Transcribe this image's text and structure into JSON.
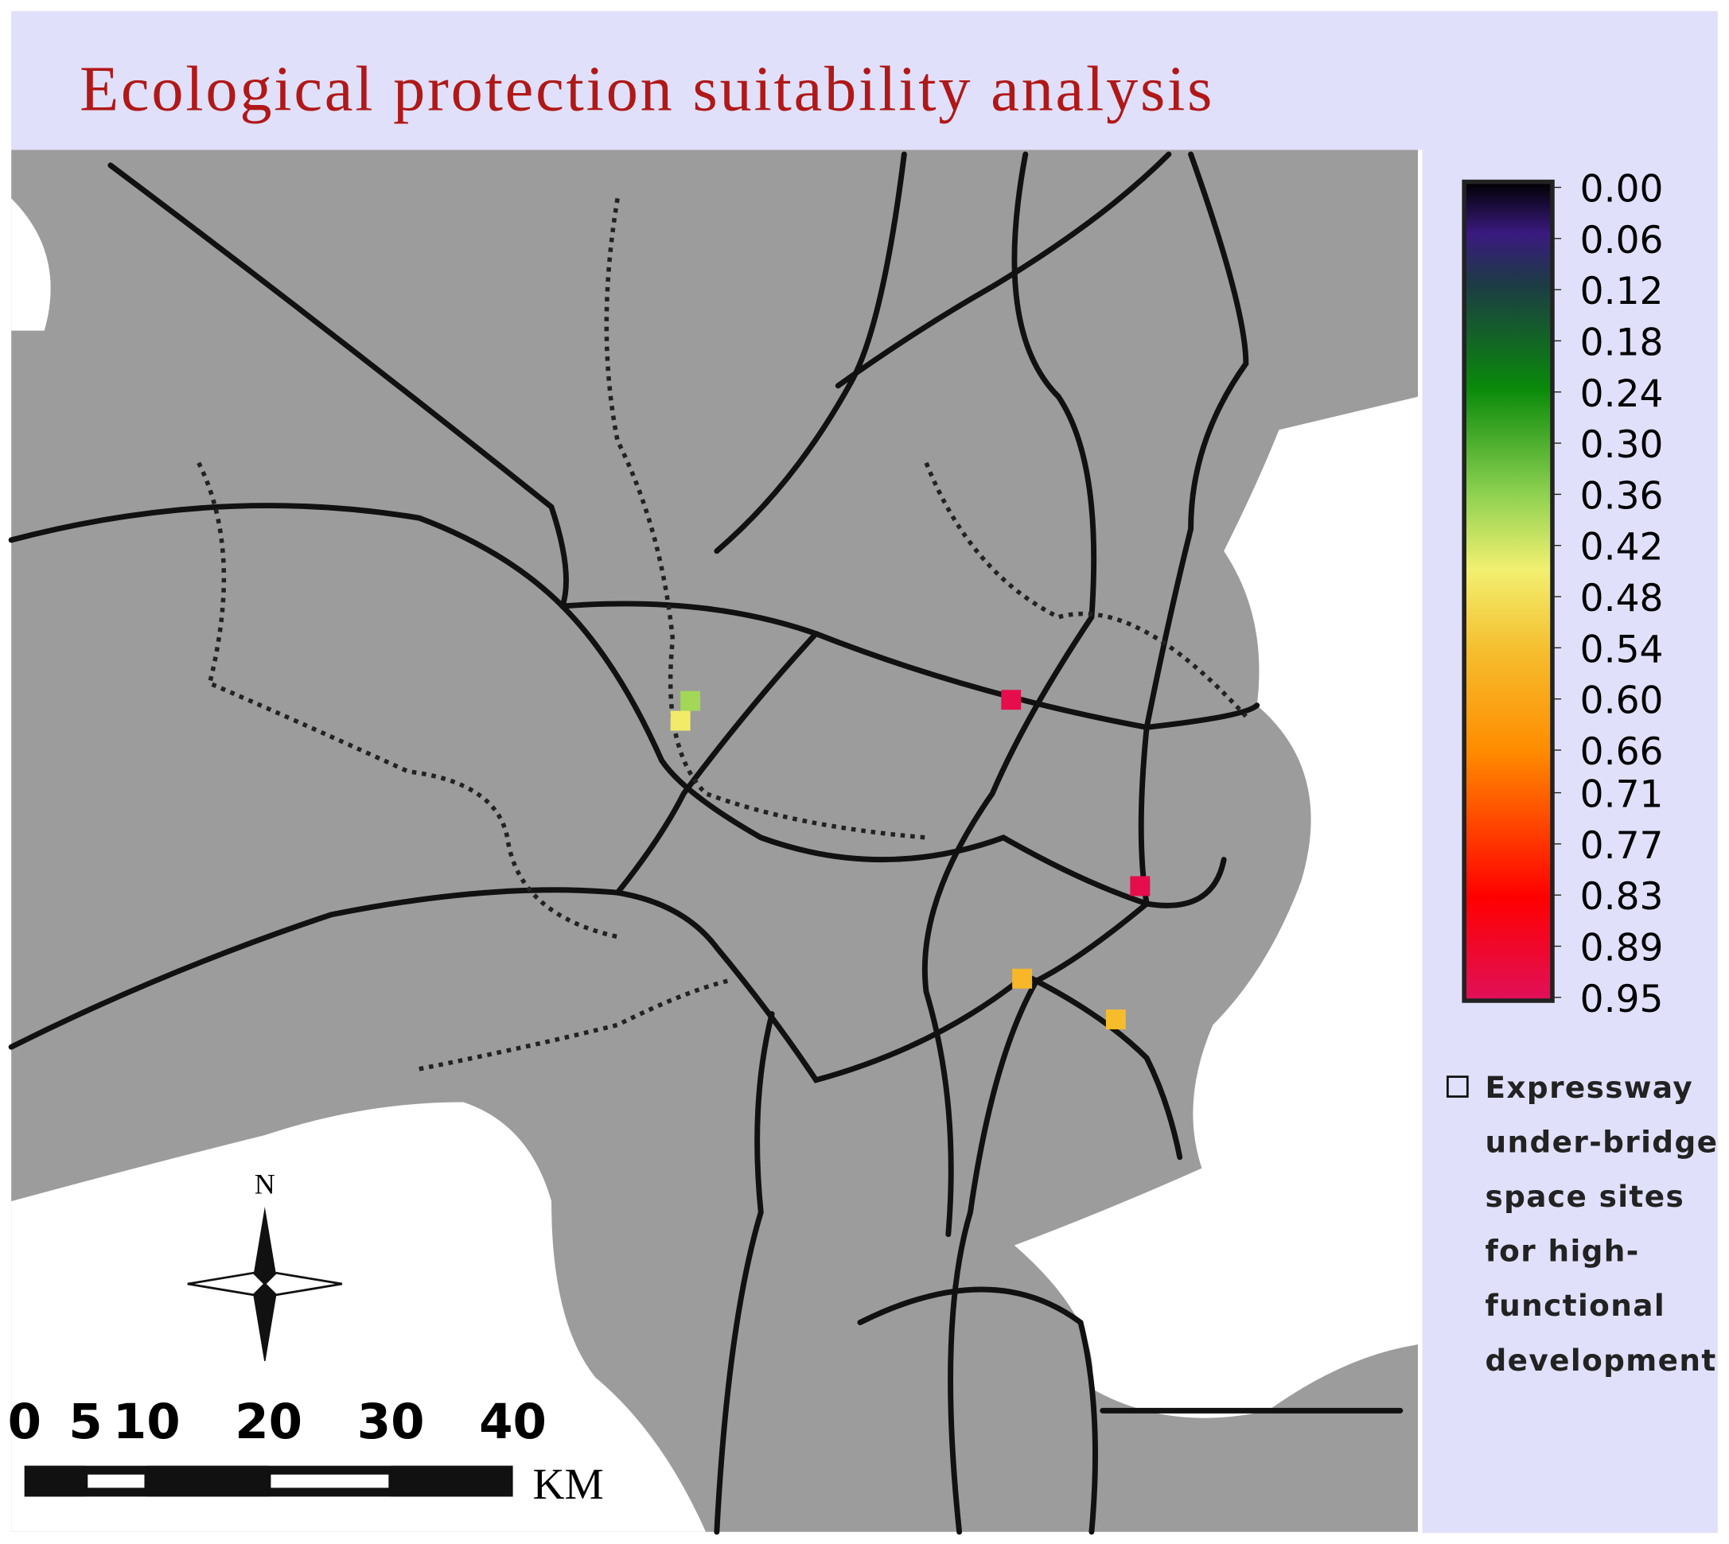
{
  "title": "Ecological protection suitability analysis",
  "colorbar": {
    "lim": [
      0,
      0.95
    ],
    "ticks": [
      {
        "value": 0,
        "label": "0.00"
      },
      {
        "value": 0.06,
        "label": "0.06"
      },
      {
        "value": 0.12,
        "label": "0.12"
      },
      {
        "value": 0.18,
        "label": "0.18"
      },
      {
        "value": 0.24,
        "label": "0.24"
      },
      {
        "value": 0.3,
        "label": "0.30"
      },
      {
        "value": 0.36,
        "label": "0.36"
      },
      {
        "value": 0.42,
        "label": "0.42"
      },
      {
        "value": 0.48,
        "label": "0.48"
      },
      {
        "value": 0.54,
        "label": "0.54"
      },
      {
        "value": 0.6,
        "label": "0.60"
      },
      {
        "value": 0.66,
        "label": "0.66"
      },
      {
        "value": 0.71,
        "label": "0.71"
      },
      {
        "value": 0.77,
        "label": "0.77"
      },
      {
        "value": 0.83,
        "label": "0.83"
      },
      {
        "value": 0.89,
        "label": "0.89"
      },
      {
        "value": 0.95,
        "label": "0.95"
      }
    ],
    "colormap": [
      {
        "value": 0,
        "color": "#000000"
      },
      {
        "value": 0.06,
        "color": "#3a1a80"
      },
      {
        "value": 0.12,
        "color": "#1c3c44"
      },
      {
        "value": 0.24,
        "color": "#0a8a0a"
      },
      {
        "value": 0.36,
        "color": "#8cd050"
      },
      {
        "value": 0.45,
        "color": "#f2f070"
      },
      {
        "value": 0.54,
        "color": "#f5c030"
      },
      {
        "value": 0.66,
        "color": "#ff8c00"
      },
      {
        "value": 0.83,
        "color": "#ff0000"
      },
      {
        "value": 0.95,
        "color": "#e0105a"
      }
    ]
  },
  "legend_lines": [
    "Expressway",
    "under-bridge",
    "space sites",
    "for high-",
    "functional",
    "development"
  ],
  "sites": [
    0.38,
    0.46,
    0.93,
    0.93,
    0.56,
    0.55
  ],
  "north": "N",
  "scale_bar": {
    "ticks": [
      0,
      5,
      10,
      20,
      30,
      40
    ],
    "unit": "KM"
  }
}
